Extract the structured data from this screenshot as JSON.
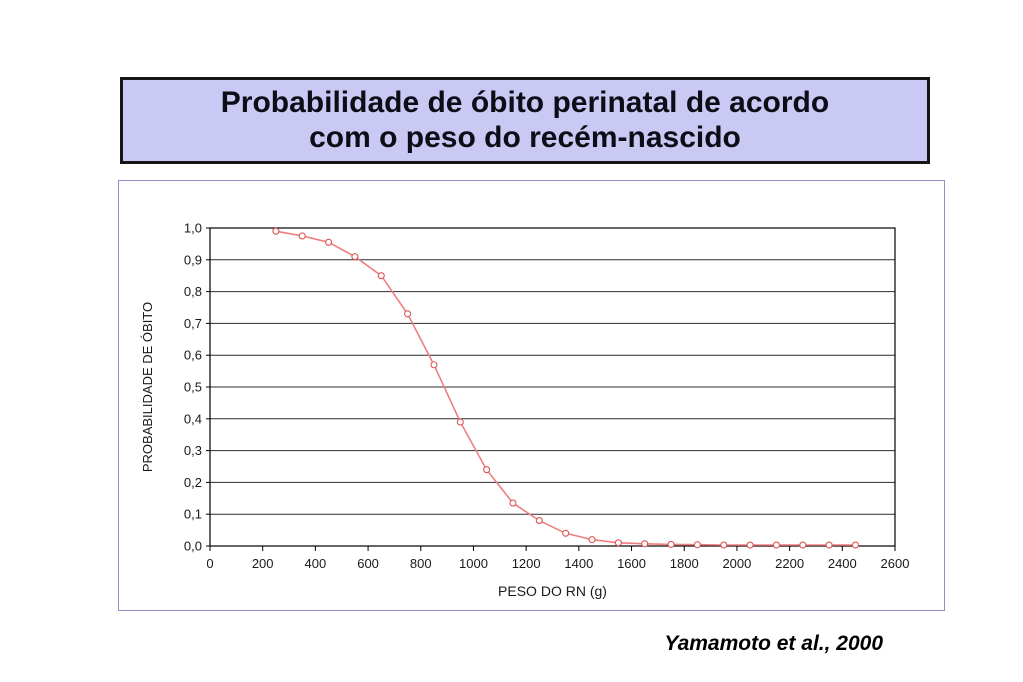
{
  "slide": {
    "title": "Probabilidade de óbito perinatal de acordo\ncom o peso do recém-nascido",
    "citation": "Yamamoto et al., 2000"
  },
  "colors": {
    "title_bg": "#c9c9f3",
    "title_border": "#161616",
    "chart_frame_border": "#8f8fca",
    "grid_line": "#2b2b2b",
    "plot_border": "#000000",
    "series_line": "#ee7f7f",
    "series_marker_stroke": "#dd5555",
    "series_marker_fill": "#ffffff",
    "text": "#1a1a1a"
  },
  "chart_data": {
    "type": "line",
    "title": "",
    "xlabel": "PESO DO RN (g)",
    "ylabel": "PROBABILIDADE DE ÓBITO",
    "xlim": [
      0,
      2600
    ],
    "ylim": [
      0.0,
      1.0
    ],
    "grid": "horizontal",
    "legend": "none",
    "x_ticks": [
      0,
      200,
      400,
      600,
      800,
      1000,
      1200,
      1400,
      1600,
      1800,
      2000,
      2200,
      2400,
      2600
    ],
    "y_tick_values": [
      0.0,
      0.1,
      0.2,
      0.3,
      0.4,
      0.5,
      0.6,
      0.7,
      0.8,
      0.9,
      1.0
    ],
    "y_tick_labels": [
      "0,0",
      "0,1",
      "0,2",
      "0,3",
      "0,4",
      "0,5",
      "0,6",
      "0,7",
      "0,8",
      "0,9",
      "1,0"
    ],
    "series": [
      {
        "name": "probabilidade de óbito perinatal",
        "x": [
          250,
          350,
          450,
          550,
          650,
          750,
          850,
          950,
          1050,
          1150,
          1250,
          1350,
          1450,
          1550,
          1650,
          1750,
          1850,
          1950,
          2050,
          2150,
          2250,
          2350,
          2450
        ],
        "y": [
          0.99,
          0.975,
          0.955,
          0.91,
          0.85,
          0.73,
          0.57,
          0.39,
          0.24,
          0.135,
          0.08,
          0.04,
          0.02,
          0.01,
          0.007,
          0.005,
          0.004,
          0.003,
          0.003,
          0.003,
          0.003,
          0.003,
          0.003
        ]
      }
    ]
  }
}
